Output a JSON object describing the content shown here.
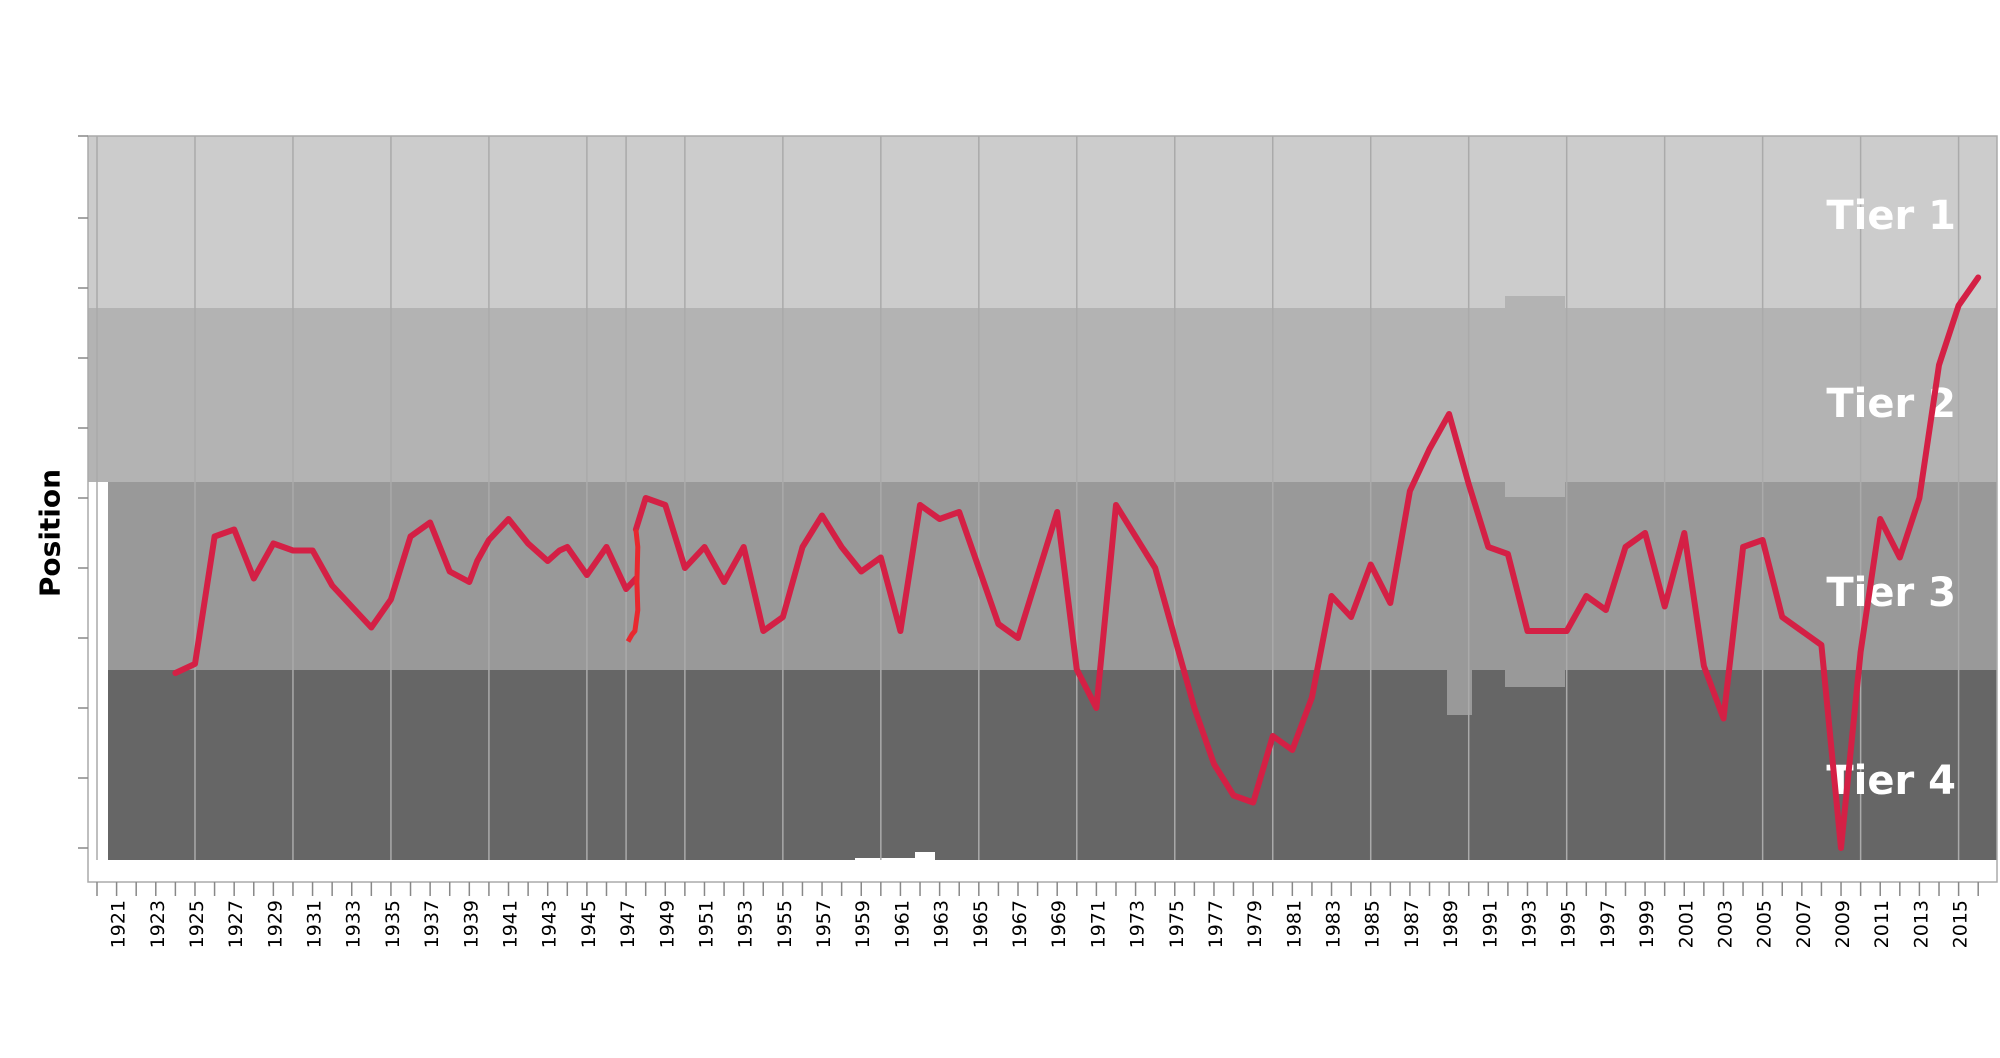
{
  "chart_data": {
    "type": "line",
    "title": "",
    "xlabel": "",
    "ylabel": "Position",
    "xlim": [
      1920,
      2016.5
    ],
    "ylim": [
      1,
      10
    ],
    "tiers": [
      "Tier 1",
      "Tier 2",
      "Tier 3",
      "Tier 4"
    ],
    "tick_labels": [
      "1921",
      "1923",
      "1925",
      "1927",
      "1929",
      "1931",
      "1933",
      "1935",
      "1937",
      "1939",
      "1941",
      "1943",
      "1945",
      "1947",
      "1949",
      "1951",
      "1953",
      "1955",
      "1957",
      "1959",
      "1961",
      "1963",
      "1965",
      "1967",
      "1969",
      "1971",
      "1973",
      "1975",
      "1977",
      "1979",
      "1981",
      "1983",
      "1985",
      "1987",
      "1989",
      "1991",
      "1993",
      "1995",
      "1997",
      "1999",
      "2001",
      "2003",
      "2005",
      "2007",
      "2009",
      "2011",
      "2013",
      "2015"
    ],
    "grid": true,
    "line_color": "#d42045",
    "series": [
      {
        "x": [
          1924,
          1925,
          1926,
          1927,
          1928,
          1929,
          1930,
          1931,
          1932,
          1933,
          1934,
          1935,
          1936,
          1937,
          1938,
          1939,
          1939.4,
          1940,
          1941,
          1942,
          1943,
          1943.6,
          1944,
          1945,
          1946,
          1947,
          1947.5
        ],
        "values": [
          7.5,
          7.37,
          5.55,
          5.45,
          6.15,
          5.65,
          5.75,
          5.75,
          6.25,
          6.55,
          6.85,
          6.45,
          5.55,
          5.35,
          6.05,
          6.2,
          5.9,
          5.6,
          5.3,
          5.65,
          5.9,
          5.75,
          5.7,
          6.1,
          5.7,
          6.3,
          6.15
        ]
      },
      {
        "x": [
          1947.5,
          1948,
          1949,
          1950,
          1951,
          1952,
          1953,
          1954,
          1955,
          1956,
          1957,
          1958,
          1959,
          1960,
          1961,
          1962,
          1963,
          1964,
          1965,
          1966,
          1967,
          1968,
          1969,
          1970,
          1971,
          1972,
          1973,
          1974,
          1975,
          1976,
          1977,
          1978,
          1979,
          1980,
          1981,
          1982,
          1983,
          1984,
          1985,
          1986,
          1987,
          1988,
          1989,
          1990,
          1991,
          1992,
          1993,
          1994,
          1995,
          1996,
          1997,
          1998,
          1999,
          2000,
          2001,
          2002,
          2003,
          2004,
          2005,
          2006,
          2007,
          2008,
          2009,
          2010,
          2011,
          2012,
          2013,
          2014,
          2015,
          2016
        ],
        "values": [
          5.45,
          5.0,
          5.1,
          6.0,
          5.7,
          6.2,
          5.7,
          6.9,
          6.7,
          5.7,
          5.25,
          5.7,
          6.05,
          5.85,
          6.9,
          5.1,
          5.3,
          5.2,
          6.0,
          6.8,
          7.0,
          6.1,
          5.2,
          7.45,
          8.0,
          5.1,
          5.55,
          6.0,
          7.0,
          8.0,
          8.8,
          9.25,
          9.35,
          8.4,
          8.6,
          7.85,
          6.4,
          6.7,
          5.95,
          6.5,
          4.9,
          4.3,
          3.8,
          4.8,
          5.7,
          5.8,
          6.9,
          6.9,
          6.9,
          6.4,
          6.6,
          5.7,
          5.5,
          6.55,
          5.5,
          7.4,
          8.15,
          5.7,
          5.6,
          6.7,
          6.9,
          7.1,
          10.0,
          7.2,
          5.3,
          5.85,
          5.0,
          3.1,
          2.25,
          1.85
        ]
      }
    ],
    "note_segment": {
      "x": [
        1947.5,
        1947.6,
        1947.55,
        1947.6,
        1947.45,
        1947.3,
        1947.1
      ],
      "values": [
        5.45,
        5.7,
        6.2,
        6.6,
        6.9,
        6.95,
        7.05
      ]
    }
  }
}
